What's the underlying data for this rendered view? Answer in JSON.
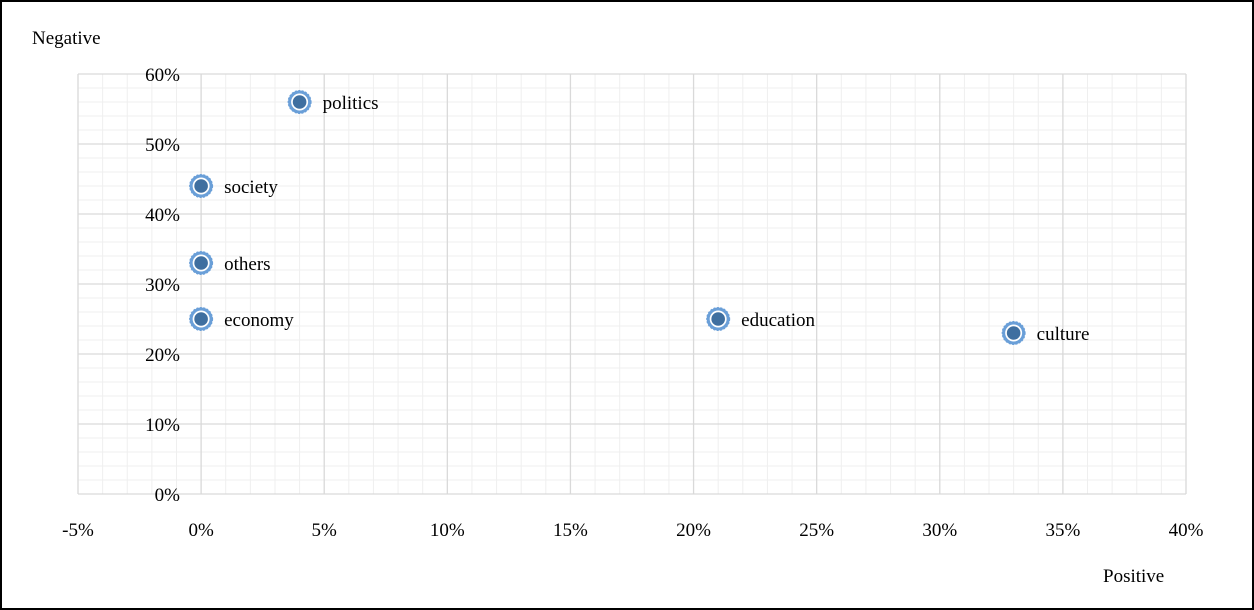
{
  "chart_data": {
    "type": "scatter",
    "title": "",
    "xlabel": "Positive",
    "ylabel": "Negative",
    "xlim": [
      -0.05,
      0.4
    ],
    "ylim": [
      0.0,
      0.6
    ],
    "x_ticks": [
      {
        "value": -0.05,
        "label": "-5%"
      },
      {
        "value": 0.0,
        "label": "0%"
      },
      {
        "value": 0.05,
        "label": "5%"
      },
      {
        "value": 0.1,
        "label": "10%"
      },
      {
        "value": 0.15,
        "label": "15%"
      },
      {
        "value": 0.2,
        "label": "20%"
      },
      {
        "value": 0.25,
        "label": "25%"
      },
      {
        "value": 0.3,
        "label": "30%"
      },
      {
        "value": 0.35,
        "label": "35%"
      },
      {
        "value": 0.4,
        "label": "40%"
      }
    ],
    "y_ticks": [
      {
        "value": 0.0,
        "label": "0%"
      },
      {
        "value": 0.1,
        "label": "10%"
      },
      {
        "value": 0.2,
        "label": "20%"
      },
      {
        "value": 0.3,
        "label": "30%"
      },
      {
        "value": 0.4,
        "label": "40%"
      },
      {
        "value": 0.5,
        "label": "50%"
      },
      {
        "value": 0.6,
        "label": "60%"
      }
    ],
    "grid": true,
    "minor_grid": true,
    "legend": "none",
    "points": [
      {
        "label": "politics",
        "x": 0.04,
        "y": 0.56
      },
      {
        "label": "society",
        "x": 0.0,
        "y": 0.44
      },
      {
        "label": "others",
        "x": 0.0,
        "y": 0.33
      },
      {
        "label": "economy",
        "x": 0.0,
        "y": 0.25
      },
      {
        "label": "education",
        "x": 0.21,
        "y": 0.25
      },
      {
        "label": "culture",
        "x": 0.33,
        "y": 0.23
      }
    ],
    "colors": {
      "marker_fill": "#3f6fa0",
      "marker_ring": "#6a9fd8",
      "marker_outline": "#ffffff",
      "major_grid": "#d9d9d9",
      "minor_grid": "#efefef",
      "frame": "#000000"
    }
  }
}
